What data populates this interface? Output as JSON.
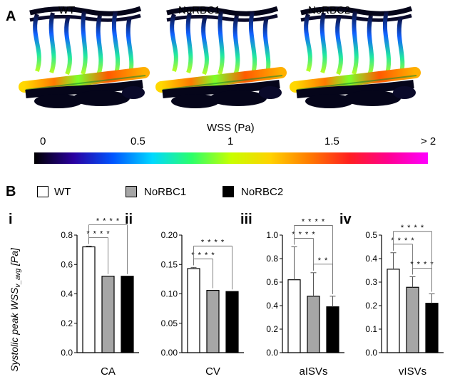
{
  "panel_a": {
    "letter": "A",
    "renders": [
      {
        "label": "WT"
      },
      {
        "label": "NoRBC1"
      },
      {
        "label": "NoRBC2"
      }
    ],
    "colorbar": {
      "title": "WSS (Pa)",
      "ticks": [
        "0",
        "0.5",
        "1",
        "1.5",
        "> 2"
      ],
      "colors": [
        "#000000",
        "#2a00a0",
        "#0055ff",
        "#00d8ff",
        "#2bff6a",
        "#c8ff00",
        "#ffd200",
        "#ff7a00",
        "#ff1f1f",
        "#ff0090",
        "#ff00ff"
      ]
    }
  },
  "panel_b": {
    "letter": "B",
    "legend": [
      {
        "label": "WT",
        "color": "#ffffff"
      },
      {
        "label": "NoRBC1",
        "color": "#a6a6a6"
      },
      {
        "label": "NoRBC2",
        "color": "#000000"
      }
    ],
    "ylabel_main": "Systolic peak WSS",
    "ylabel_sub": "v_avg",
    "ylabel_unit": " [Pa]"
  },
  "chart_data": [
    {
      "type": "bar",
      "subpanel": "i",
      "xlabel": "CA",
      "ylim": [
        0,
        0.8
      ],
      "yticks": [
        "0.0",
        "0.2",
        "0.4",
        "0.6",
        "0.8"
      ],
      "categories": [
        "WT",
        "NoRBC1",
        "NoRBC2"
      ],
      "values": [
        0.72,
        0.52,
        0.52
      ],
      "errors": [
        0.005,
        0.0,
        0.0
      ],
      "significance": [
        {
          "from": 0,
          "to": 1,
          "label": "* * * *"
        },
        {
          "from": 0,
          "to": 2,
          "label": "* * * *"
        }
      ]
    },
    {
      "type": "bar",
      "subpanel": "ii",
      "xlabel": "CV",
      "ylim": [
        0,
        0.2
      ],
      "yticks": [
        "0.00",
        "0.05",
        "0.10",
        "0.15",
        "0.20"
      ],
      "categories": [
        "WT",
        "NoRBC1",
        "NoRBC2"
      ],
      "values": [
        0.143,
        0.106,
        0.104
      ],
      "errors": [
        0.002,
        0.0,
        0.0
      ],
      "significance": [
        {
          "from": 0,
          "to": 1,
          "label": "* * * *"
        },
        {
          "from": 0,
          "to": 2,
          "label": "* * * *"
        }
      ]
    },
    {
      "type": "bar",
      "subpanel": "iii",
      "xlabel": "aISVs",
      "ylim": [
        0,
        1.0
      ],
      "yticks": [
        "0.0",
        "0.2",
        "0.4",
        "0.6",
        "0.8",
        "1.0"
      ],
      "categories": [
        "WT",
        "NoRBC1",
        "NoRBC2"
      ],
      "values": [
        0.62,
        0.48,
        0.39
      ],
      "errors": [
        0.28,
        0.2,
        0.09
      ],
      "significance": [
        {
          "from": 0,
          "to": 1,
          "label": "* * * *"
        },
        {
          "from": 1,
          "to": 2,
          "label": "* *"
        },
        {
          "from": 0,
          "to": 2,
          "label": "* * * *"
        }
      ]
    },
    {
      "type": "bar",
      "subpanel": "iv",
      "xlabel": "vISVs",
      "ylim": [
        0,
        0.5
      ],
      "yticks": [
        "0.0",
        "0.1",
        "0.2",
        "0.3",
        "0.4",
        "0.5"
      ],
      "categories": [
        "WT",
        "NoRBC1",
        "NoRBC2"
      ],
      "values": [
        0.355,
        0.278,
        0.21
      ],
      "errors": [
        0.07,
        0.045,
        0.04
      ],
      "significance": [
        {
          "from": 0,
          "to": 1,
          "label": "* * * *"
        },
        {
          "from": 1,
          "to": 2,
          "label": "* * * *"
        },
        {
          "from": 0,
          "to": 2,
          "label": "* * * *"
        }
      ]
    }
  ]
}
